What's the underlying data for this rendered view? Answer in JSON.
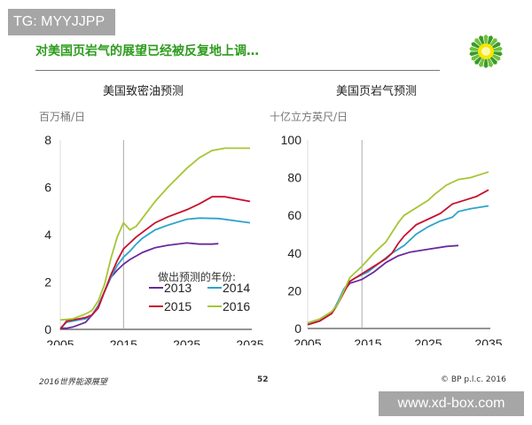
{
  "watermark_top": "TG: MYYJJPP",
  "header": {
    "title": "对美国页岩气的展望已经被反复地上调…",
    "logo": "bp-helios-logo"
  },
  "footer": {
    "left": "2016世界能源展望",
    "page": "52",
    "right": "© BP p.l.c. 2016"
  },
  "watermark_bottom": "www.xd-box.com",
  "colors": {
    "2013": "#6a2a9c",
    "2014": "#2ea3cc",
    "2015": "#c8102e",
    "2016": "#a5c633",
    "title": "#2e9c1e"
  },
  "legend": {
    "title": "做出预测的年份:",
    "items": [
      "2013",
      "2014",
      "2015",
      "2016"
    ]
  },
  "chart_data": [
    {
      "type": "line",
      "title": "美国致密油预测",
      "ylabel": "百万桶/日",
      "xlim": [
        2005,
        2035
      ],
      "ylim": [
        0,
        8
      ],
      "xticks": [
        "2005",
        "2015",
        "2025",
        "2035"
      ],
      "yticks": [
        "0",
        "2",
        "4",
        "6",
        "8"
      ],
      "marker_year": 2015,
      "legend_position": "bottom-right",
      "series": [
        {
          "name": "2013",
          "x": [
            2005,
            2006,
            2007,
            2008,
            2009,
            2010,
            2011,
            2012,
            2013,
            2014,
            2015,
            2016,
            2017,
            2018,
            2019,
            2020,
            2022,
            2025,
            2027,
            2029,
            2030
          ],
          "y": [
            0.05,
            0.05,
            0.1,
            0.2,
            0.3,
            0.6,
            1.0,
            1.6,
            2.2,
            2.5,
            2.75,
            2.95,
            3.1,
            3.25,
            3.35,
            3.45,
            3.55,
            3.65,
            3.6,
            3.6,
            3.62
          ]
        },
        {
          "name": "2014",
          "x": [
            2005,
            2006,
            2007,
            2008,
            2009,
            2010,
            2011,
            2012,
            2013,
            2014,
            2015,
            2016,
            2017,
            2018,
            2020,
            2022,
            2025,
            2027,
            2030,
            2035
          ],
          "y": [
            0.05,
            0.3,
            0.35,
            0.4,
            0.45,
            0.6,
            0.95,
            1.6,
            2.2,
            2.7,
            3.05,
            3.3,
            3.6,
            3.85,
            4.2,
            4.4,
            4.65,
            4.7,
            4.68,
            4.5
          ]
        },
        {
          "name": "2015",
          "x": [
            2005,
            2006,
            2007,
            2008,
            2009,
            2010,
            2011,
            2012,
            2013,
            2014,
            2015,
            2016,
            2017,
            2018,
            2020,
            2022,
            2025,
            2027,
            2029,
            2031,
            2035
          ],
          "y": [
            0.0,
            0.35,
            0.4,
            0.45,
            0.5,
            0.6,
            0.9,
            1.6,
            2.3,
            2.9,
            3.4,
            3.65,
            3.9,
            4.1,
            4.5,
            4.75,
            5.05,
            5.3,
            5.6,
            5.6,
            5.4
          ]
        },
        {
          "name": "2016",
          "x": [
            2005,
            2006,
            2007,
            2008,
            2009,
            2010,
            2011,
            2012,
            2013,
            2014,
            2015,
            2016,
            2017,
            2018,
            2020,
            2022,
            2025,
            2027,
            2029,
            2031,
            2035
          ],
          "y": [
            0.4,
            0.42,
            0.45,
            0.55,
            0.65,
            0.8,
            1.2,
            1.9,
            3.0,
            3.9,
            4.5,
            4.2,
            4.35,
            4.7,
            5.4,
            6.0,
            6.8,
            7.25,
            7.55,
            7.65,
            7.65
          ]
        }
      ]
    },
    {
      "type": "line",
      "title": "美国页岩气预测",
      "ylabel": "十亿立方英尺/日",
      "xlim": [
        2005,
        2035
      ],
      "ylim": [
        0,
        100
      ],
      "xticks": [
        "2005",
        "2015",
        "2025",
        "2035"
      ],
      "yticks": [
        "0",
        "20",
        "40",
        "60",
        "80",
        "100"
      ],
      "marker_year": 2014,
      "series": [
        {
          "name": "2013",
          "x": [
            2005,
            2007,
            2009,
            2010,
            2011,
            2012,
            2013,
            2014,
            2016,
            2018,
            2020,
            2022,
            2025,
            2028,
            2030
          ],
          "y": [
            2,
            4,
            8,
            14,
            20,
            24,
            25,
            26,
            30,
            35,
            38.5,
            40.5,
            42,
            43.5,
            44
          ]
        },
        {
          "name": "2014",
          "x": [
            2005,
            2007,
            2009,
            2010,
            2011,
            2012,
            2013,
            2015,
            2017,
            2019,
            2021,
            2023,
            2025,
            2027,
            2029,
            2030,
            2032,
            2035
          ],
          "y": [
            2,
            4,
            8,
            14,
            21,
            25,
            27,
            30,
            35,
            40,
            44,
            50,
            54,
            57,
            59,
            62,
            63.5,
            65
          ]
        },
        {
          "name": "2015",
          "x": [
            2005,
            2007,
            2009,
            2010,
            2011,
            2012,
            2013,
            2014,
            2016,
            2018,
            2019,
            2020,
            2021,
            2023,
            2025,
            2027,
            2029,
            2031,
            2033,
            2035
          ],
          "y": [
            2,
            4,
            8,
            13,
            19,
            25,
            27,
            29,
            33,
            37,
            40,
            45,
            49,
            55,
            58,
            61,
            66,
            68,
            70,
            73.5
          ]
        },
        {
          "name": "2016",
          "x": [
            2005,
            2007,
            2009,
            2010,
            2011,
            2012,
            2013,
            2014,
            2016,
            2018,
            2020,
            2021,
            2023,
            2025,
            2026,
            2028,
            2030,
            2032,
            2035
          ],
          "y": [
            3,
            5,
            9,
            13,
            20,
            27,
            30,
            33,
            40,
            46,
            56,
            60,
            64,
            68,
            71,
            76,
            79,
            80,
            83
          ]
        }
      ]
    }
  ]
}
